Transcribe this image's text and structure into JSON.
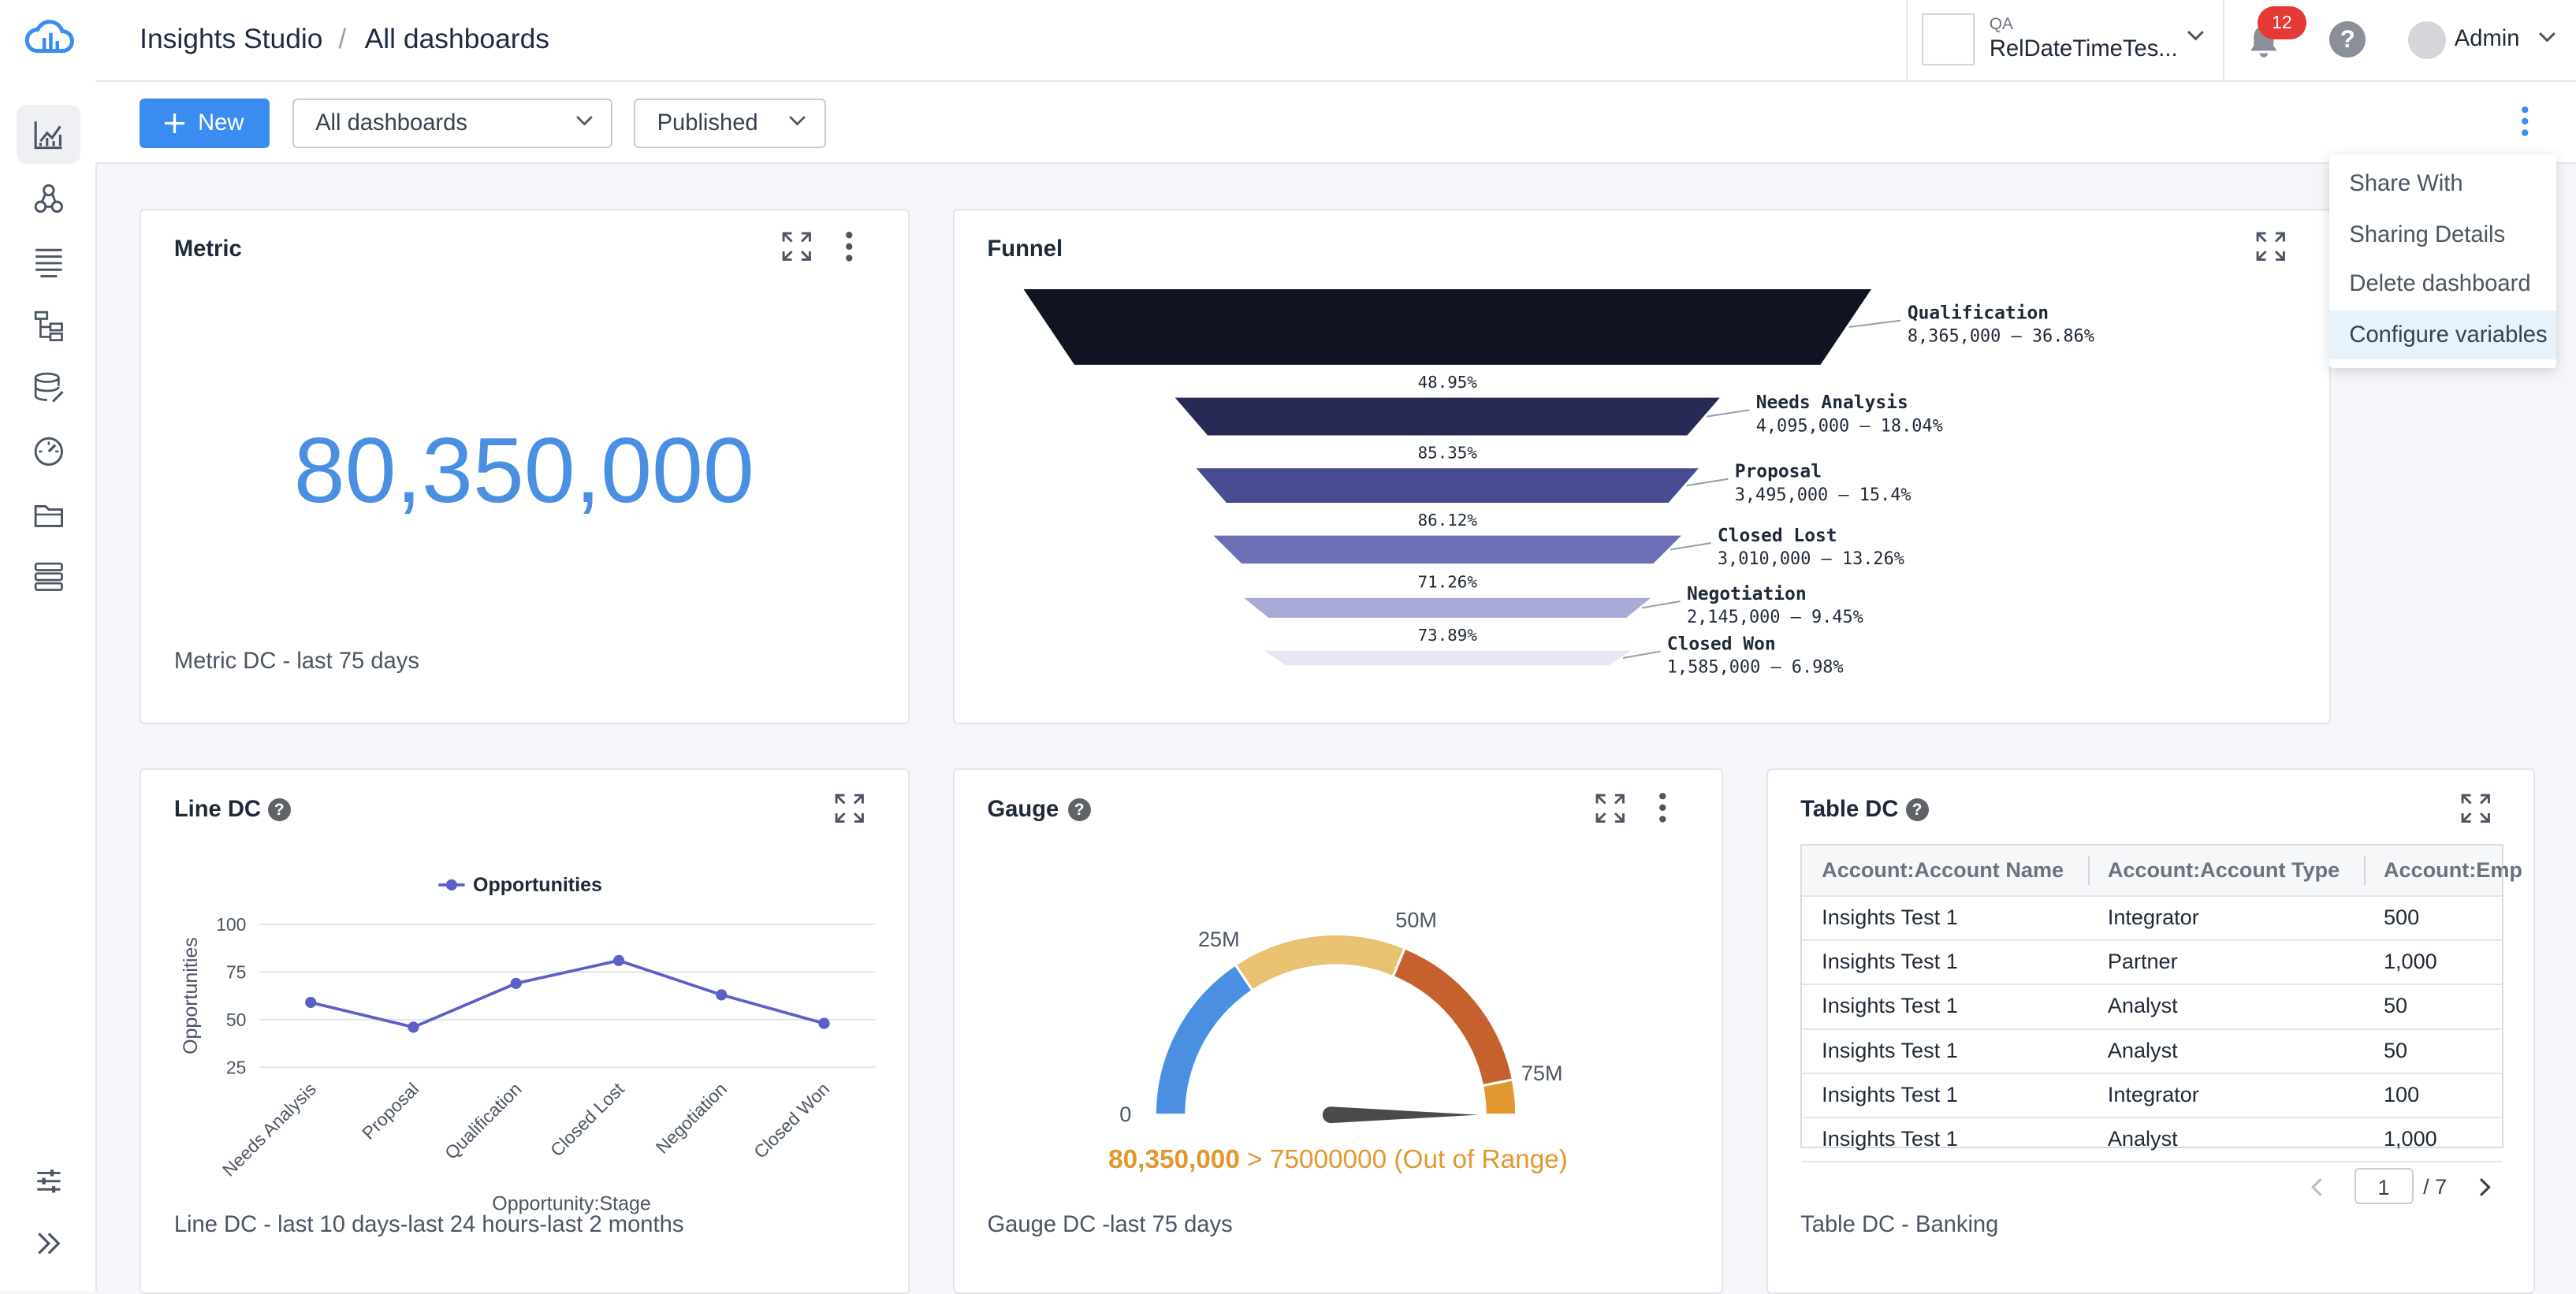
{
  "header": {
    "app_title": "Insights Studio",
    "separator": "/",
    "page_title": "All dashboards",
    "workspace_label": "QA",
    "workspace_name": "RelDateTimeTes...",
    "notification_count": "12",
    "help_glyph": "?",
    "user_name": "Admin"
  },
  "sidebar": {
    "items": [
      {
        "icon": "dashboard-chart-icon",
        "active": true
      },
      {
        "icon": "data-model-icon"
      },
      {
        "icon": "list-icon"
      },
      {
        "icon": "hierarchy-icon"
      },
      {
        "icon": "database-edit-icon"
      },
      {
        "icon": "gauge-icon"
      },
      {
        "icon": "folder-icon"
      },
      {
        "icon": "stacked-list-icon"
      }
    ],
    "bottom_items": [
      {
        "icon": "settings-sliders-icon"
      },
      {
        "icon": "expand-sidebar-icon"
      }
    ]
  },
  "toolbar": {
    "new_label": "New",
    "filter_value": "All dashboards",
    "status_value": "Published"
  },
  "menu": {
    "items": [
      "Share With",
      "Sharing Details",
      "Delete dashboard",
      "Configure variables"
    ],
    "highlighted": "Configure variables"
  },
  "metric_card": {
    "title": "Metric",
    "value": "80,350,000",
    "footer": "Metric DC - last 75 days"
  },
  "funnel_card": {
    "title": "Funnel",
    "chart_data": {
      "type": "funnel",
      "stages": [
        {
          "name": "Qualification",
          "value": 8365000,
          "value_label": "8,365,000 – 36.86%",
          "color": "#0f1322"
        },
        {
          "name": "Needs Analysis",
          "value": 4095000,
          "value_label": "4,095,000 – 18.04%",
          "color": "#272a55"
        },
        {
          "name": "Proposal",
          "value": 3495000,
          "value_label": "3,495,000 – 15.4%",
          "color": "#474b8f"
        },
        {
          "name": "Closed Lost",
          "value": 3010000,
          "value_label": "3,010,000 – 13.26%",
          "color": "#6d6fb6"
        },
        {
          "name": "Negotiation",
          "value": 2145000,
          "value_label": "2,145,000 – 9.45%",
          "color": "#a9aad6"
        },
        {
          "name": "Closed Won",
          "value": 1585000,
          "value_label": "1,585,000 – 6.98%",
          "color": "#e6e6f4"
        }
      ],
      "conversion_labels": [
        "48.95%",
        "85.35%",
        "86.12%",
        "71.26%",
        "73.89%"
      ]
    }
  },
  "line_card": {
    "title": "Line DC",
    "footer": "Line DC - last 10 days-last 24 hours-last 2 months",
    "chart_data": {
      "type": "line",
      "categories": [
        "Needs Analysis",
        "Proposal",
        "Qualification",
        "Closed Lost",
        "Negotiation",
        "Closed Won"
      ],
      "series": [
        {
          "name": "Opportunities",
          "values": [
            59,
            46,
            69,
            81,
            63,
            48
          ],
          "color": "#5b5fc7"
        }
      ],
      "xlabel": "Opportunity:Stage",
      "ylabel": "Opportunities",
      "yticks": [
        "100",
        "75",
        "50",
        "25"
      ],
      "ylim": [
        25,
        100
      ],
      "grid": true,
      "legend": "top-center"
    }
  },
  "gauge_card": {
    "title": "Gauge",
    "footer": "Gauge DC -last 75 days",
    "value_text": "80,350,000",
    "suffix_text": "> 75000000 (Out of Range)",
    "chart_data": {
      "type": "gauge",
      "min": 0,
      "max": 80000000,
      "value": 80350000,
      "tick_labels": [
        "0",
        "25M",
        "50M",
        "75M"
      ],
      "bands": [
        {
          "from": 0,
          "to": 25000000,
          "color": "#4a8fe2"
        },
        {
          "from": 25000000,
          "to": 50000000,
          "color": "#e8c171"
        },
        {
          "from": 50000000,
          "to": 75000000,
          "color": "#c4612f"
        },
        {
          "from": 75000000,
          "to": 80000000,
          "color": "#e2982e"
        }
      ],
      "value_color": "#e2982e"
    }
  },
  "table_card": {
    "title": "Table DC",
    "footer": "Table DC - Banking",
    "columns": [
      "Account:Account Name",
      "Account:Account Type",
      "Account:Emp"
    ],
    "rows": [
      [
        "Insights Test 1",
        "Integrator",
        "500"
      ],
      [
        "Insights Test 1",
        "Partner",
        "1,000"
      ],
      [
        "Insights Test 1",
        "Analyst",
        "50"
      ],
      [
        "Insights Test 1",
        "Analyst",
        "50"
      ],
      [
        "Insights Test 1",
        "Integrator",
        "100"
      ],
      [
        "Insights Test 1",
        "Analyst",
        "1,000"
      ]
    ],
    "page": "1",
    "total_pages": "/ 7"
  }
}
